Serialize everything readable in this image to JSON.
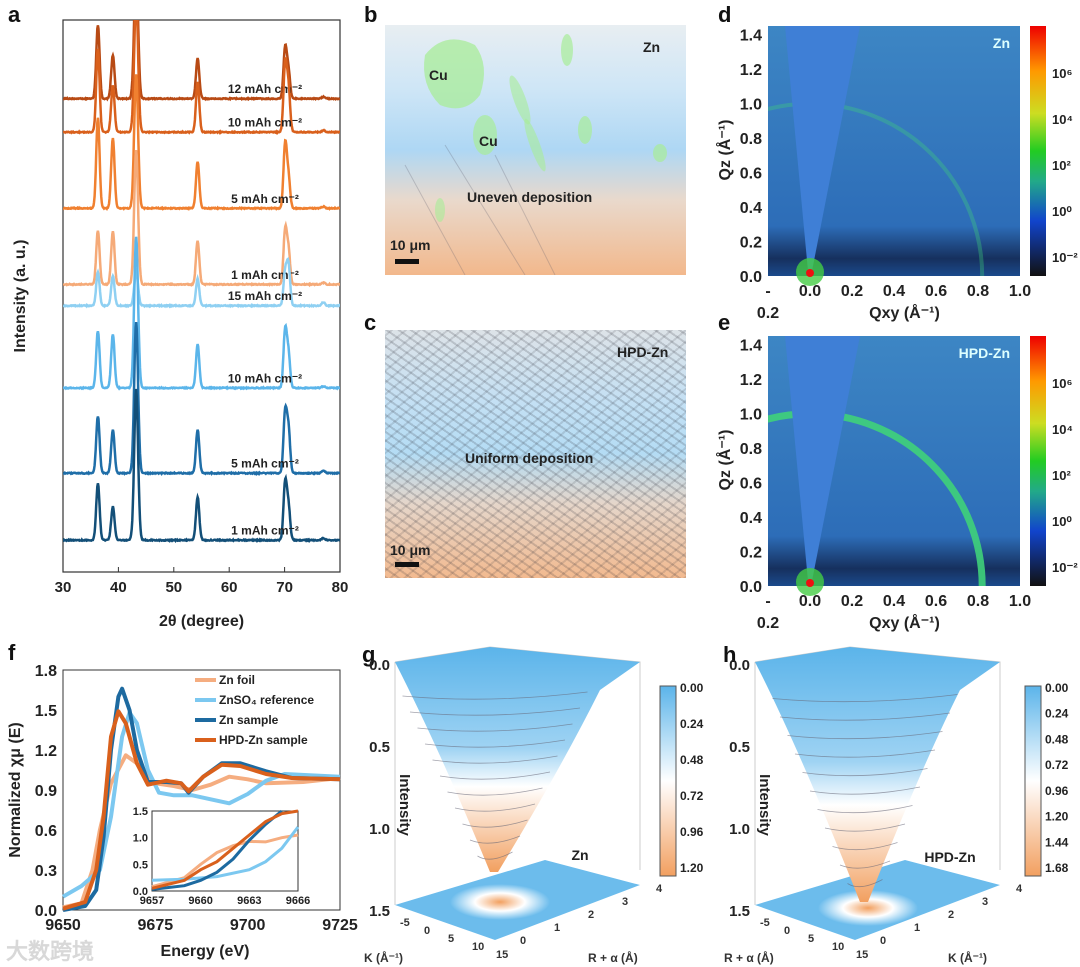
{
  "panels": {
    "a": "a",
    "b": "b",
    "c": "c",
    "d": "d",
    "e": "e",
    "f": "f",
    "g": "g",
    "h": "h"
  },
  "micro": {
    "b": {
      "tag": "Zn",
      "cu1": "Cu",
      "cu2": "Cu",
      "caption": "Uneven deposition",
      "scale": "10 μm"
    },
    "c": {
      "tag": "HPD-Zn",
      "caption": "Uniform deposition",
      "scale": "10 μm"
    }
  },
  "watermark": "大数跨境",
  "chart_data": [
    {
      "panel": "a",
      "type": "line",
      "xlabel": "2θ (degree)",
      "ylabel": "Intensity (a. u.)",
      "xlim": [
        30,
        80
      ],
      "xticks": [
        "30",
        "40",
        "50",
        "60",
        "70",
        "80"
      ],
      "peaks": [
        36.3,
        39.0,
        43.2,
        54.3,
        70.1,
        70.7,
        77.0
      ],
      "series": [
        {
          "name": "12 mAh cm⁻²",
          "color": "#b84a14",
          "offset": 7.6,
          "heights": [
            2.2,
            1.3,
            4,
            1.2,
            1.5,
            0.8,
            0.05
          ]
        },
        {
          "name": "10 mAh cm⁻²",
          "color": "#d9601c",
          "offset": 7.05,
          "heights": [
            2.5,
            1.4,
            4,
            1.5,
            2.0,
            1.3,
            0.05
          ]
        },
        {
          "name": "5 mAh cm⁻²",
          "color": "#f08030",
          "offset": 5.8,
          "heights": [
            2.7,
            2.1,
            4,
            1.4,
            1.9,
            0.9,
            0.05
          ]
        },
        {
          "name": "1 mAh cm⁻²",
          "color": "#f5aa78",
          "offset": 4.55,
          "heights": [
            1.6,
            1.6,
            4,
            1.3,
            1.6,
            1.0,
            0.05
          ]
        },
        {
          "name": "15 mAh cm⁻²",
          "color": "#8fd0f2",
          "offset": 4.2,
          "heights": [
            1.0,
            0.9,
            1.0,
            0.8,
            1.0,
            1.2,
            0.1
          ]
        },
        {
          "name": "10 mAh cm⁻²",
          "color": "#5bb5ea",
          "offset": 2.85,
          "heights": [
            1.7,
            1.6,
            4.5,
            1.3,
            1.7,
            1.0,
            0.05
          ]
        },
        {
          "name": "5 mAh cm⁻²",
          "color": "#1f6ea8",
          "offset": 1.45,
          "heights": [
            1.7,
            1.3,
            4.5,
            1.3,
            1.8,
            1.3,
            0.08
          ]
        },
        {
          "name": "1 mAh cm⁻²",
          "color": "#134f78",
          "offset": 0.35,
          "heights": [
            1.7,
            1.0,
            4.5,
            1.3,
            1.7,
            1.0,
            0.06
          ]
        }
      ]
    },
    {
      "panel": "d",
      "type": "heatmap",
      "title": "Zn",
      "xlabel": "Qxy (Å⁻¹)",
      "ylabel": "Qz (Å⁻¹)",
      "xlim": [
        -0.2,
        1.0
      ],
      "ylim": [
        0,
        1.45
      ],
      "xticks": [
        "-",
        "0.0",
        "0.2",
        "0.4",
        "0.6",
        "0.8",
        "1.0"
      ],
      "xtick_extra": "0.2",
      "yticks": [
        "0.0",
        "0.2",
        "0.4",
        "0.6",
        "0.8",
        "1.0",
        "1.2",
        "1.4"
      ],
      "colorbar": {
        "scale": "log",
        "ticks": [
          "10⁶",
          "10⁴",
          "10²",
          "10⁰",
          "10⁻²"
        ]
      },
      "ring_q": 0.82,
      "ring_strength": 0.35
    },
    {
      "panel": "e",
      "type": "heatmap",
      "title": "HPD-Zn",
      "xlabel": "Qxy (Å⁻¹)",
      "ylabel": "Qz (Å⁻¹)",
      "xlim": [
        -0.2,
        1.0
      ],
      "ylim": [
        0,
        1.45
      ],
      "xticks": [
        "-",
        "0.0",
        "0.2",
        "0.4",
        "0.6",
        "0.8",
        "1.0"
      ],
      "xtick_extra": "0.2",
      "yticks": [
        "0.0",
        "0.2",
        "0.4",
        "0.6",
        "0.8",
        "1.0",
        "1.2",
        "1.4"
      ],
      "colorbar": {
        "scale": "log",
        "ticks": [
          "10⁶",
          "10⁴",
          "10²",
          "10⁰",
          "10⁻²"
        ]
      },
      "ring_q": 0.82,
      "ring_strength": 0.9
    },
    {
      "panel": "f",
      "type": "line",
      "xlabel": "Energy (eV)",
      "ylabel": "Normalized χμ (E)",
      "xlim": [
        9650,
        9725
      ],
      "ylim": [
        0,
        1.8
      ],
      "xticks": [
        "9650",
        "9675",
        "9700",
        "9725"
      ],
      "yticks": [
        "0.0",
        "0.3",
        "0.6",
        "0.9",
        "1.2",
        "1.5",
        "1.8"
      ],
      "legend": [
        "Zn foil",
        "ZnSO₄ reference",
        "Zn sample",
        "HPD-Zn sample"
      ],
      "series": [
        {
          "name": "Zn foil",
          "color": "#f5ad80",
          "points": [
            [
              9650,
              0.02
            ],
            [
              9655,
              0.05
            ],
            [
              9658,
              0.3
            ],
            [
              9660,
              0.6
            ],
            [
              9663,
              0.95
            ],
            [
              9667,
              1.16
            ],
            [
              9670,
              1.1
            ],
            [
              9675,
              0.95
            ],
            [
              9680,
              0.93
            ],
            [
              9685,
              0.9
            ],
            [
              9690,
              0.94
            ],
            [
              9695,
              1.0
            ],
            [
              9700,
              0.98
            ],
            [
              9705,
              0.95
            ],
            [
              9715,
              0.96
            ],
            [
              9725,
              0.99
            ]
          ]
        },
        {
          "name": "ZnSO₄ reference",
          "color": "#7cc8f0",
          "points": [
            [
              9650,
              0.1
            ],
            [
              9655,
              0.18
            ],
            [
              9660,
              0.3
            ],
            [
              9663,
              0.7
            ],
            [
              9666,
              1.3
            ],
            [
              9668,
              1.48
            ],
            [
              9670,
              1.4
            ],
            [
              9673,
              1.05
            ],
            [
              9676,
              0.88
            ],
            [
              9680,
              0.86
            ],
            [
              9685,
              0.86
            ],
            [
              9690,
              0.83
            ],
            [
              9695,
              0.8
            ],
            [
              9700,
              0.87
            ],
            [
              9705,
              0.97
            ],
            [
              9710,
              1.02
            ],
            [
              9725,
              1.0
            ]
          ]
        },
        {
          "name": "Zn sample",
          "color": "#1d6aa0",
          "points": [
            [
              9650,
              0.0
            ],
            [
              9656,
              0.03
            ],
            [
              9659,
              0.15
            ],
            [
              9661,
              0.55
            ],
            [
              9663,
              1.2
            ],
            [
              9665,
              1.6
            ],
            [
              9666,
              1.66
            ],
            [
              9668,
              1.5
            ],
            [
              9670,
              1.2
            ],
            [
              9673,
              0.96
            ],
            [
              9678,
              0.96
            ],
            [
              9682,
              0.95
            ],
            [
              9684,
              0.88
            ],
            [
              9688,
              1.0
            ],
            [
              9693,
              1.1
            ],
            [
              9698,
              1.1
            ],
            [
              9705,
              1.04
            ],
            [
              9712,
              0.99
            ],
            [
              9725,
              0.98
            ]
          ]
        },
        {
          "name": "HPD-Zn sample",
          "color": "#d9601c",
          "points": [
            [
              9650,
              0.01
            ],
            [
              9656,
              0.06
            ],
            [
              9659,
              0.3
            ],
            [
              9661,
              0.7
            ],
            [
              9663,
              1.3
            ],
            [
              9665,
              1.49
            ],
            [
              9667,
              1.4
            ],
            [
              9670,
              1.1
            ],
            [
              9673,
              0.94
            ],
            [
              9678,
              0.97
            ],
            [
              9682,
              0.95
            ],
            [
              9684,
              0.89
            ],
            [
              9688,
              1.0
            ],
            [
              9693,
              1.09
            ],
            [
              9698,
              1.08
            ],
            [
              9705,
              1.02
            ],
            [
              9712,
              0.99
            ],
            [
              9725,
              0.98
            ]
          ]
        }
      ],
      "inset": {
        "xlim": [
          9657,
          9666
        ],
        "ylim": [
          0,
          1.5
        ],
        "xticks": [
          "9657",
          "9660",
          "9663",
          "9666"
        ],
        "yticks": [
          "0.0",
          "0.5",
          "1.0",
          "1.5"
        ],
        "series": [
          {
            "color": "#f5ad80",
            "points": [
              [
                9657,
                0.08
              ],
              [
                9659,
                0.25
              ],
              [
                9660,
                0.5
              ],
              [
                9661,
                0.72
              ],
              [
                9662,
                0.85
              ],
              [
                9663,
                0.93
              ],
              [
                9664,
                0.92
              ],
              [
                9665,
                1.0
              ],
              [
                9666,
                1.05
              ]
            ]
          },
          {
            "color": "#7cc8f0",
            "points": [
              [
                9657,
                0.2
              ],
              [
                9659,
                0.22
              ],
              [
                9661,
                0.27
              ],
              [
                9663,
                0.4
              ],
              [
                9664,
                0.55
              ],
              [
                9665,
                0.8
              ],
              [
                9666,
                1.2
              ]
            ]
          },
          {
            "color": "#1d6aa0",
            "points": [
              [
                9657,
                0.03
              ],
              [
                9659,
                0.1
              ],
              [
                9660,
                0.2
              ],
              [
                9661,
                0.35
              ],
              [
                9662,
                0.6
              ],
              [
                9663,
                0.95
              ],
              [
                9664,
                1.25
              ],
              [
                9665,
                1.5
              ]
            ]
          },
          {
            "color": "#d9601c",
            "points": [
              [
                9657,
                0.05
              ],
              [
                9659,
                0.2
              ],
              [
                9660,
                0.4
              ],
              [
                9661,
                0.55
              ],
              [
                9662,
                0.8
              ],
              [
                9663,
                1.05
              ],
              [
                9664,
                1.3
              ],
              [
                9665,
                1.45
              ],
              [
                9666,
                1.5
              ]
            ]
          }
        ]
      }
    },
    {
      "panel": "g",
      "type": "surface",
      "title": "Zn",
      "zlabel": "Intensity",
      "zticks": [
        "0.0",
        "0.5",
        "1.0",
        "1.5"
      ],
      "axis1": "K (Å⁻¹)",
      "axis1_ticks": [
        "-5",
        "0",
        "5",
        "10",
        "15"
      ],
      "axis2": "R + α (Å)",
      "axis2_ticks": [
        "0",
        "1",
        "2",
        "3",
        "4"
      ],
      "colorbar": [
        "0.00",
        "0.24",
        "0.48",
        "0.72",
        "0.96",
        "1.20"
      ]
    },
    {
      "panel": "h",
      "type": "surface",
      "title": "HPD-Zn",
      "zlabel": "Intensity",
      "zticks": [
        "0.0",
        "0.5",
        "1.0",
        "1.5"
      ],
      "axis1": "R + α (Å)",
      "axis1_ticks": [
        "-5",
        "0",
        "5",
        "10",
        "15"
      ],
      "axis2": "K (Å⁻¹)",
      "axis2_ticks": [
        "0",
        "1",
        "2",
        "3",
        "4"
      ],
      "colorbar": [
        "0.00",
        "0.24",
        "0.48",
        "0.72",
        "0.96",
        "1.20",
        "1.44",
        "1.68"
      ]
    }
  ]
}
